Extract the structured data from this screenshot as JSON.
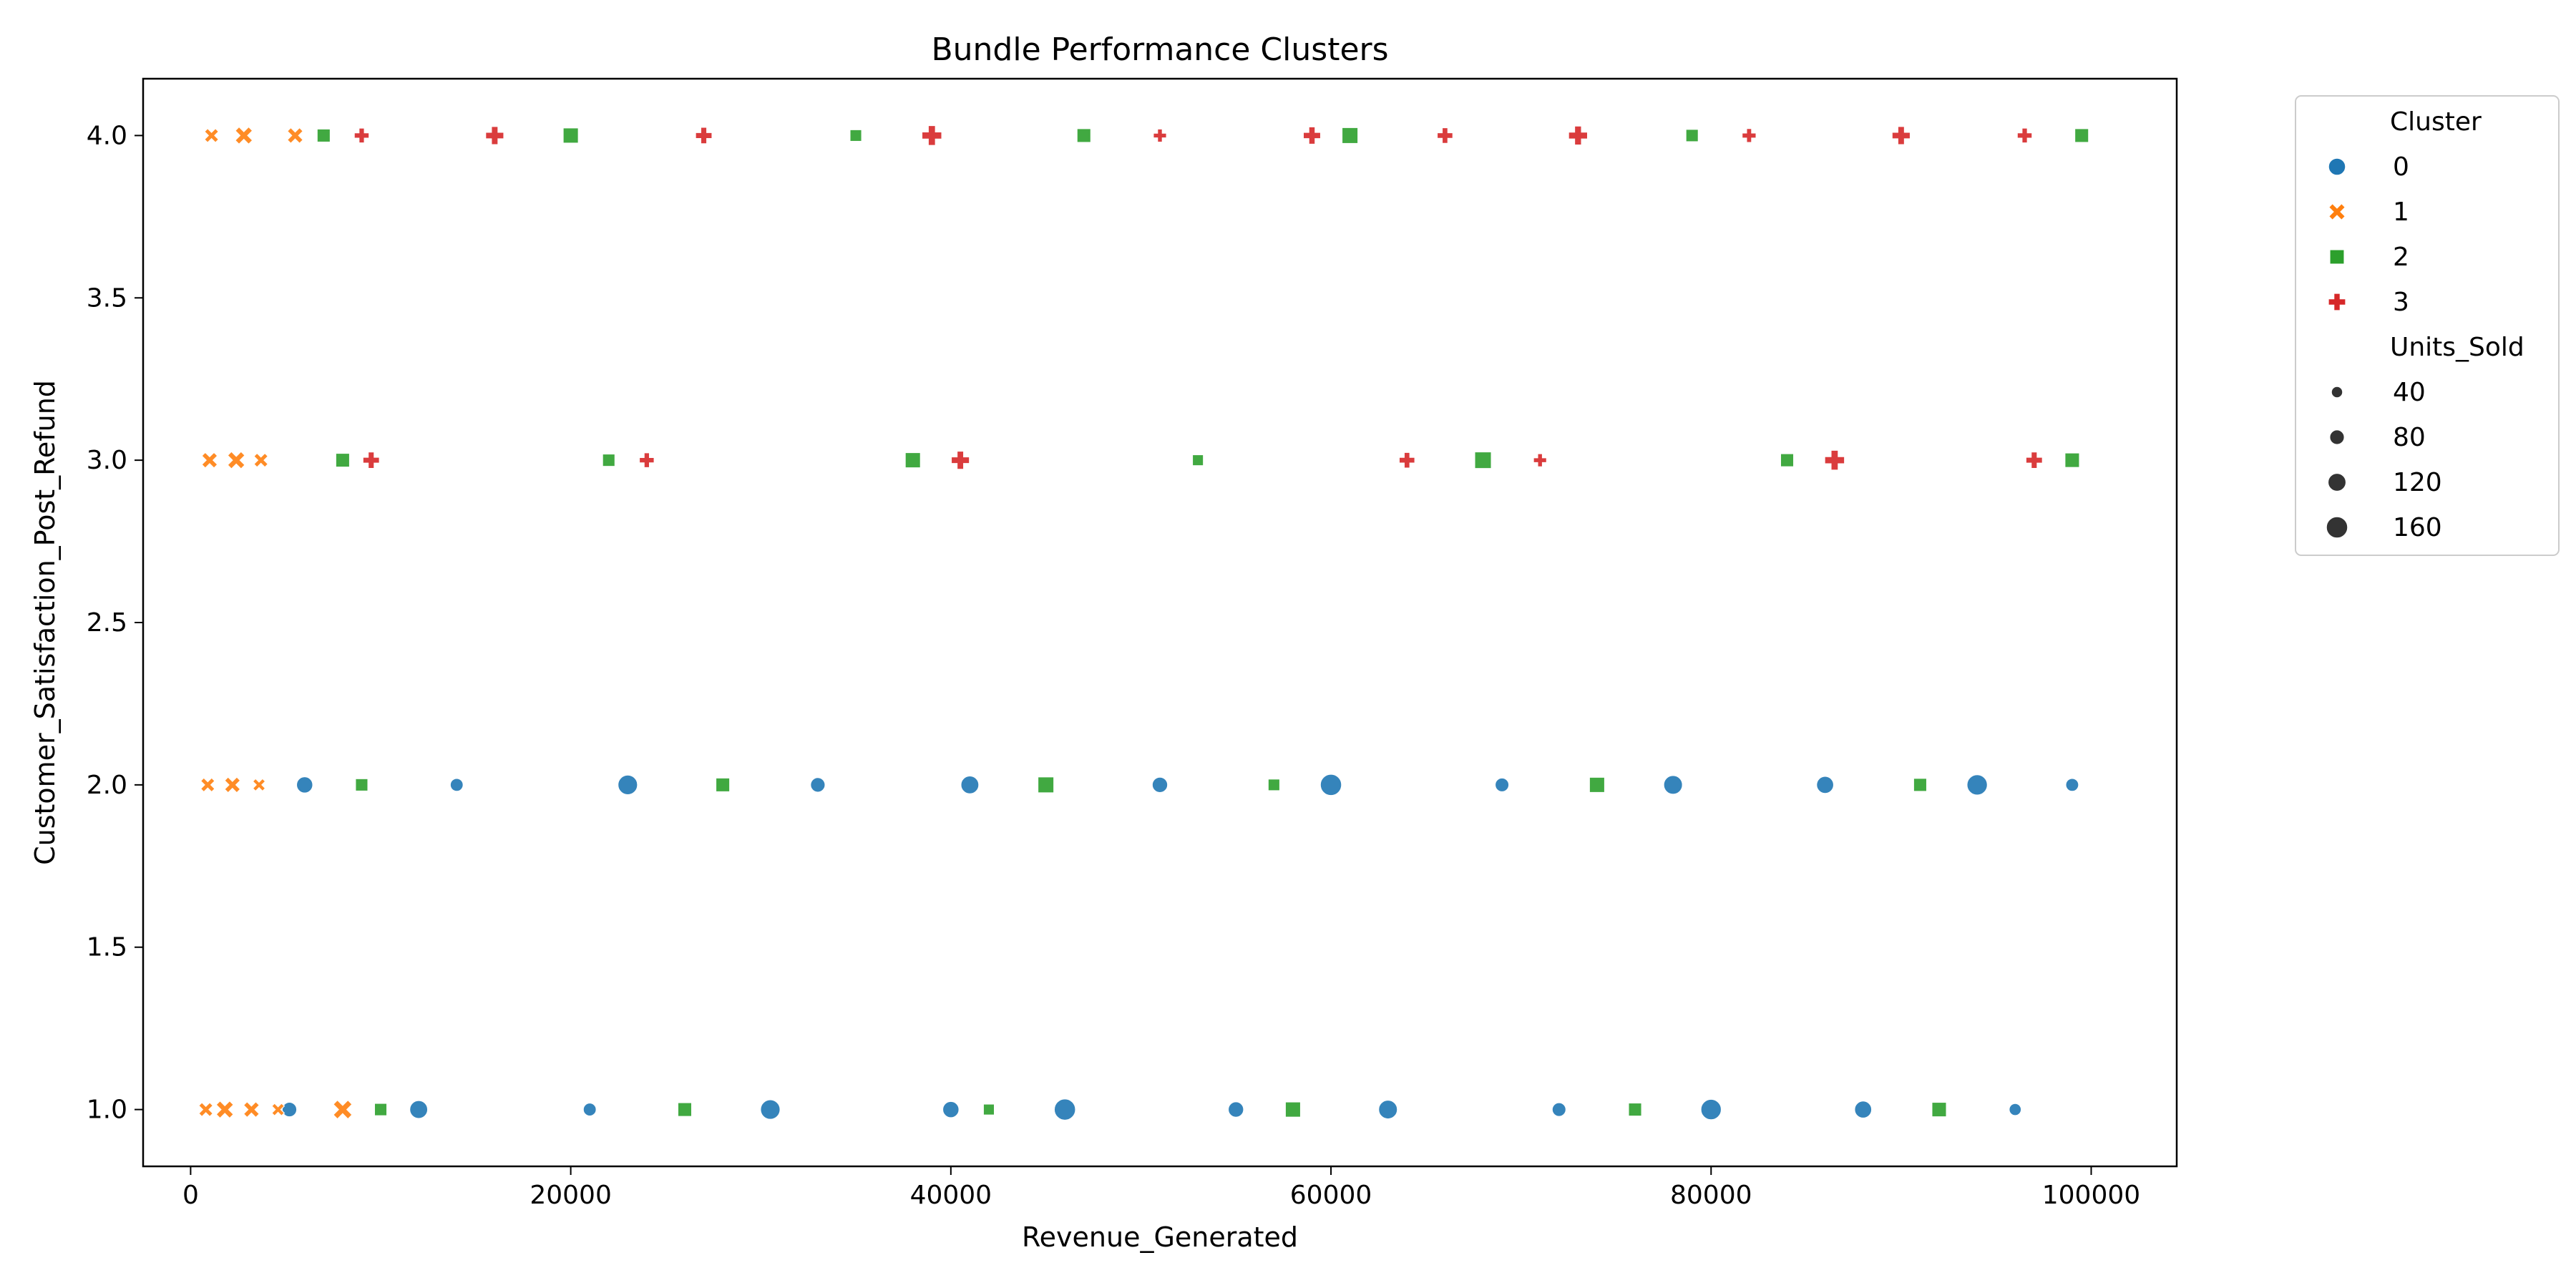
{
  "chart_data": {
    "type": "scatter",
    "title": "Bundle Performance Clusters",
    "xlabel": "Revenue_Generated",
    "ylabel": "Customer_Satisfaction_Post_Refund",
    "xlim": [
      -2500,
      104500
    ],
    "ylim": [
      0.825,
      4.175
    ],
    "xticks": [
      0,
      20000,
      40000,
      60000,
      80000,
      100000
    ],
    "xtick_labels": [
      "0",
      "20000",
      "40000",
      "60000",
      "80000",
      "100000"
    ],
    "yticks": [
      1.0,
      1.5,
      2.0,
      2.5,
      3.0,
      3.5,
      4.0
    ],
    "ytick_labels": [
      "1.0",
      "1.5",
      "2.0",
      "2.5",
      "3.0",
      "3.5",
      "4.0"
    ],
    "grid": false,
    "legend": {
      "placement": "outside-top-right",
      "hue_title": "Cluster",
      "size_title": "Units_Sold",
      "hue_entries": [
        {
          "label": "0",
          "marker": "circle",
          "color": "#1f77b4"
        },
        {
          "label": "1",
          "marker": "x",
          "color": "#ff7f0e"
        },
        {
          "label": "2",
          "marker": "square",
          "color": "#2ca02c"
        },
        {
          "label": "3",
          "marker": "plus",
          "color": "#d62728"
        }
      ],
      "size_entries": [
        {
          "label": "40",
          "units": 40
        },
        {
          "label": "80",
          "units": 80
        },
        {
          "label": "120",
          "units": 120
        },
        {
          "label": "160",
          "units": 160
        }
      ]
    },
    "series": [
      {
        "name": "0",
        "marker": "circle",
        "color": "#1f77b4",
        "points": [
          {
            "x": 5200,
            "y": 1,
            "size": 80
          },
          {
            "x": 12000,
            "y": 1,
            "size": 120
          },
          {
            "x": 21000,
            "y": 1,
            "size": 60
          },
          {
            "x": 30500,
            "y": 1,
            "size": 140
          },
          {
            "x": 40000,
            "y": 1,
            "size": 100
          },
          {
            "x": 46000,
            "y": 1,
            "size": 160
          },
          {
            "x": 55000,
            "y": 1,
            "size": 90
          },
          {
            "x": 63000,
            "y": 1,
            "size": 130
          },
          {
            "x": 72000,
            "y": 1,
            "size": 70
          },
          {
            "x": 80000,
            "y": 1,
            "size": 150
          },
          {
            "x": 88000,
            "y": 1,
            "size": 110
          },
          {
            "x": 96000,
            "y": 1,
            "size": 50
          },
          {
            "x": 6000,
            "y": 2,
            "size": 100
          },
          {
            "x": 14000,
            "y": 2,
            "size": 60
          },
          {
            "x": 23000,
            "y": 2,
            "size": 140
          },
          {
            "x": 33000,
            "y": 2,
            "size": 80
          },
          {
            "x": 41000,
            "y": 2,
            "size": 120
          },
          {
            "x": 51000,
            "y": 2,
            "size": 90
          },
          {
            "x": 60000,
            "y": 2,
            "size": 160
          },
          {
            "x": 69000,
            "y": 2,
            "size": 70
          },
          {
            "x": 78000,
            "y": 2,
            "size": 130
          },
          {
            "x": 86000,
            "y": 2,
            "size": 110
          },
          {
            "x": 94000,
            "y": 2,
            "size": 150
          },
          {
            "x": 99000,
            "y": 2,
            "size": 60
          }
        ]
      },
      {
        "name": "1",
        "marker": "x",
        "color": "#ff7f0e",
        "points": [
          {
            "x": 800,
            "y": 1,
            "size": 80
          },
          {
            "x": 1800,
            "y": 1,
            "size": 120
          },
          {
            "x": 3200,
            "y": 1,
            "size": 100
          },
          {
            "x": 4600,
            "y": 1,
            "size": 60
          },
          {
            "x": 8000,
            "y": 1,
            "size": 140
          },
          {
            "x": 900,
            "y": 2,
            "size": 80
          },
          {
            "x": 2200,
            "y": 2,
            "size": 100
          },
          {
            "x": 3600,
            "y": 2,
            "size": 60
          },
          {
            "x": 1000,
            "y": 3,
            "size": 100
          },
          {
            "x": 2400,
            "y": 3,
            "size": 120
          },
          {
            "x": 3700,
            "y": 3,
            "size": 80
          },
          {
            "x": 1100,
            "y": 4,
            "size": 80
          },
          {
            "x": 2800,
            "y": 4,
            "size": 120
          },
          {
            "x": 5500,
            "y": 4,
            "size": 100
          }
        ]
      },
      {
        "name": "2",
        "marker": "square",
        "color": "#2ca02c",
        "points": [
          {
            "x": 10000,
            "y": 1,
            "size": 80
          },
          {
            "x": 26000,
            "y": 1,
            "size": 100
          },
          {
            "x": 42000,
            "y": 1,
            "size": 60
          },
          {
            "x": 58000,
            "y": 1,
            "size": 120
          },
          {
            "x": 76000,
            "y": 1,
            "size": 90
          },
          {
            "x": 92000,
            "y": 1,
            "size": 110
          },
          {
            "x": 9000,
            "y": 2,
            "size": 80
          },
          {
            "x": 28000,
            "y": 2,
            "size": 100
          },
          {
            "x": 45000,
            "y": 2,
            "size": 130
          },
          {
            "x": 57000,
            "y": 2,
            "size": 70
          },
          {
            "x": 74000,
            "y": 2,
            "size": 120
          },
          {
            "x": 91000,
            "y": 2,
            "size": 90
          },
          {
            "x": 8000,
            "y": 3,
            "size": 100
          },
          {
            "x": 22000,
            "y": 3,
            "size": 80
          },
          {
            "x": 38000,
            "y": 3,
            "size": 120
          },
          {
            "x": 53000,
            "y": 3,
            "size": 60
          },
          {
            "x": 68000,
            "y": 3,
            "size": 140
          },
          {
            "x": 84000,
            "y": 3,
            "size": 90
          },
          {
            "x": 99000,
            "y": 3,
            "size": 110
          },
          {
            "x": 7000,
            "y": 4,
            "size": 90
          },
          {
            "x": 20000,
            "y": 4,
            "size": 120
          },
          {
            "x": 35000,
            "y": 4,
            "size": 70
          },
          {
            "x": 47000,
            "y": 4,
            "size": 100
          },
          {
            "x": 61000,
            "y": 4,
            "size": 130
          },
          {
            "x": 79000,
            "y": 4,
            "size": 80
          },
          {
            "x": 99500,
            "y": 4,
            "size": 100
          }
        ]
      },
      {
        "name": "3",
        "marker": "plus",
        "color": "#d62728",
        "points": [
          {
            "x": 9500,
            "y": 3,
            "size": 100
          },
          {
            "x": 24000,
            "y": 3,
            "size": 80
          },
          {
            "x": 40500,
            "y": 3,
            "size": 120
          },
          {
            "x": 64000,
            "y": 3,
            "size": 90
          },
          {
            "x": 71000,
            "y": 3,
            "size": 60
          },
          {
            "x": 86500,
            "y": 3,
            "size": 140
          },
          {
            "x": 97000,
            "y": 3,
            "size": 100
          },
          {
            "x": 9000,
            "y": 4,
            "size": 80
          },
          {
            "x": 16000,
            "y": 4,
            "size": 120
          },
          {
            "x": 27000,
            "y": 4,
            "size": 100
          },
          {
            "x": 39000,
            "y": 4,
            "size": 140
          },
          {
            "x": 51000,
            "y": 4,
            "size": 60
          },
          {
            "x": 59000,
            "y": 4,
            "size": 110
          },
          {
            "x": 66000,
            "y": 4,
            "size": 90
          },
          {
            "x": 73000,
            "y": 4,
            "size": 130
          },
          {
            "x": 82000,
            "y": 4,
            "size": 70
          },
          {
            "x": 90000,
            "y": 4,
            "size": 120
          },
          {
            "x": 96500,
            "y": 4,
            "size": 80
          }
        ]
      }
    ]
  }
}
